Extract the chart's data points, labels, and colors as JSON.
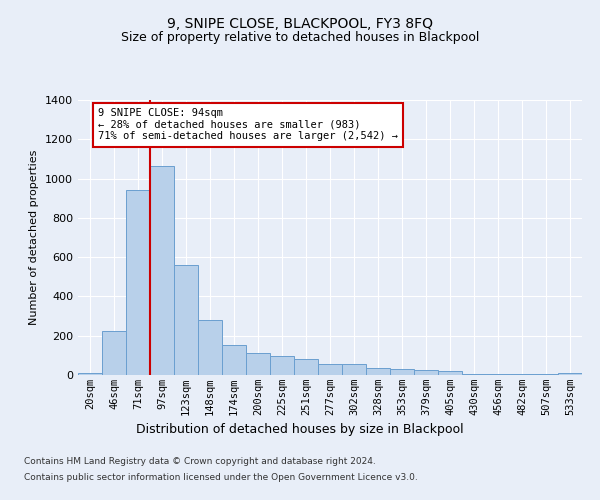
{
  "title": "9, SNIPE CLOSE, BLACKPOOL, FY3 8FQ",
  "subtitle": "Size of property relative to detached houses in Blackpool",
  "xlabel": "Distribution of detached houses by size in Blackpool",
  "ylabel": "Number of detached properties",
  "footer_line1": "Contains HM Land Registry data © Crown copyright and database right 2024.",
  "footer_line2": "Contains public sector information licensed under the Open Government Licence v3.0.",
  "bin_labels": [
    "20sqm",
    "46sqm",
    "71sqm",
    "97sqm",
    "123sqm",
    "148sqm",
    "174sqm",
    "200sqm",
    "225sqm",
    "251sqm",
    "277sqm",
    "302sqm",
    "328sqm",
    "353sqm",
    "379sqm",
    "405sqm",
    "430sqm",
    "456sqm",
    "482sqm",
    "507sqm",
    "533sqm"
  ],
  "bar_values": [
    10,
    225,
    940,
    1065,
    560,
    280,
    155,
    110,
    95,
    80,
    55,
    55,
    35,
    30,
    25,
    20,
    5,
    5,
    5,
    5,
    10
  ],
  "bar_color": "#b8d0ea",
  "bar_edge_color": "#6a9fd0",
  "background_color": "#e8eef8",
  "grid_color": "#ffffff",
  "annotation_text": "9 SNIPE CLOSE: 94sqm\n← 28% of detached houses are smaller (983)\n71% of semi-detached houses are larger (2,542) →",
  "annotation_box_color": "#ffffff",
  "annotation_box_edge_color": "#cc0000",
  "vline_color": "#cc0000",
  "ylim": [
    0,
    1400
  ],
  "yticks": [
    0,
    200,
    400,
    600,
    800,
    1000,
    1200,
    1400
  ]
}
